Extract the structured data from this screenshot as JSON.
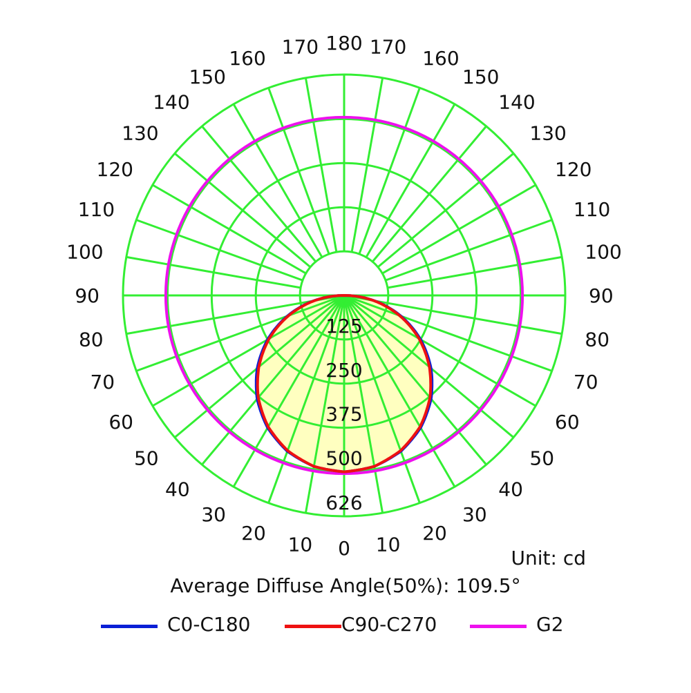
{
  "chart_data": {
    "type": "polar",
    "unit_text": "Unit: cd",
    "angle_text": "Average Diffuse Angle(50%): 109.5°",
    "radial_max": 626,
    "radial_ticks": [
      125,
      250,
      375,
      500,
      626
    ],
    "radial_tick_labels": [
      "125",
      "250",
      "375",
      "500",
      "626"
    ],
    "angle_labels_left": [
      "10",
      "20",
      "30",
      "40",
      "50",
      "60",
      "70",
      "80",
      "90",
      "100",
      "110",
      "120",
      "130",
      "140",
      "150",
      "160",
      "170"
    ],
    "angle_labels_right": [
      "10",
      "20",
      "30",
      "40",
      "50",
      "60",
      "70",
      "80",
      "90",
      "100",
      "110",
      "120",
      "130",
      "140",
      "150",
      "160",
      "170"
    ],
    "angle_label_bottom": "0",
    "angle_label_top": "180",
    "grid": true,
    "colors": {
      "grid": "#33ee33",
      "fill": "#ffffc0",
      "C0-C180": "#0a1fd6",
      "C90-C270": "#ee1111",
      "G2": "#ee11ee"
    },
    "series": [
      {
        "name": "C0-C180",
        "angles": [
          0,
          10,
          20,
          30,
          40,
          50,
          60,
          70,
          80,
          90
        ],
        "values": [
          500,
          492,
          470,
          433,
          383,
          321,
          250,
          171,
          87,
          0
        ]
      },
      {
        "name": "C90-C270",
        "angles": [
          0,
          10,
          20,
          30,
          40,
          50,
          60,
          70,
          80,
          90
        ],
        "values": [
          500,
          492,
          468,
          430,
          378,
          315,
          245,
          167,
          85,
          0
        ]
      },
      {
        "name": "G2",
        "angles": [
          0,
          30,
          60,
          90,
          120,
          150,
          180
        ],
        "values": [
          505,
          505,
          505,
          505,
          505,
          505,
          505
        ]
      }
    ],
    "legend": [
      {
        "name": "C0-C180",
        "label": "C0-C180"
      },
      {
        "name": "C90-C270",
        "label": "C90-C270"
      },
      {
        "name": "G2",
        "label": "G2"
      }
    ],
    "legend_position": "bottom"
  }
}
